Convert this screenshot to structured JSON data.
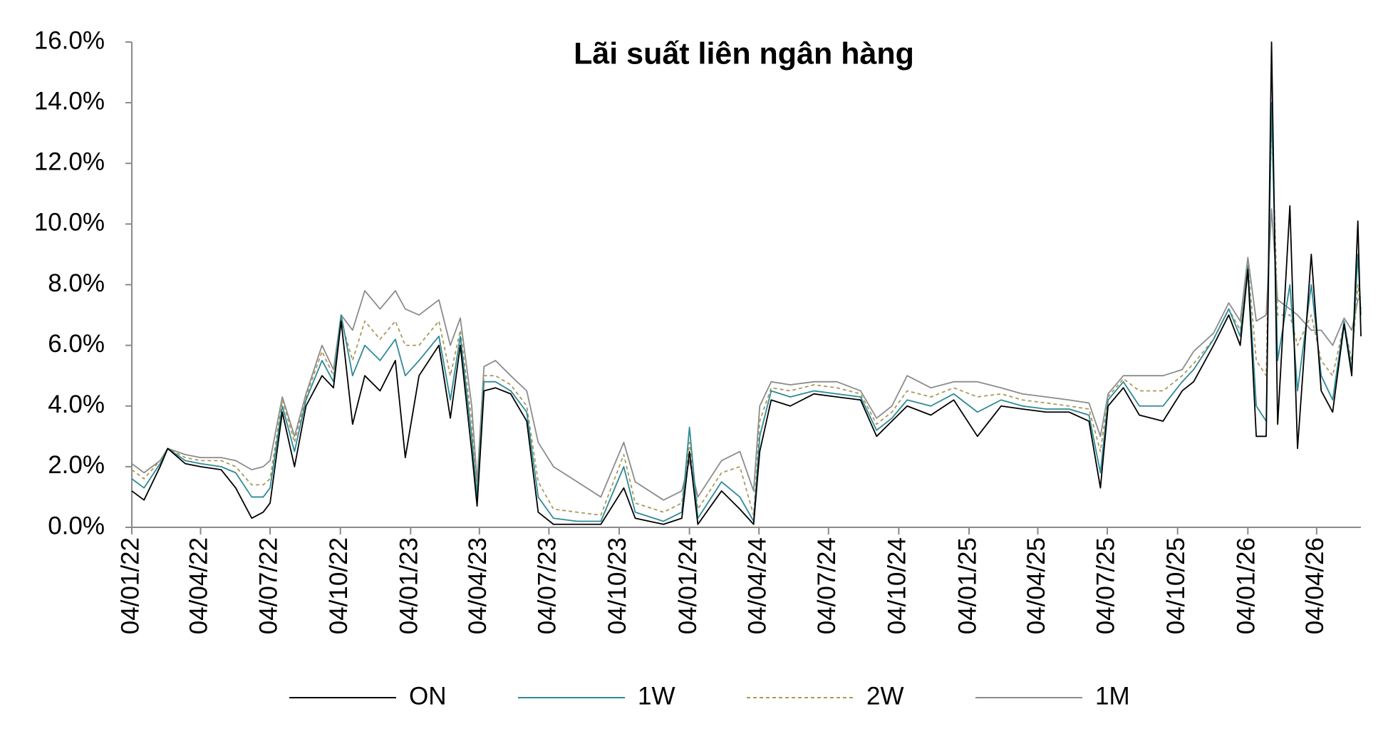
{
  "chart_data": {
    "type": "line",
    "title": "Lãi suất liên ngân hàng",
    "x": [
      "2022-01-04",
      "2022-01-20",
      "2022-02-10",
      "2022-02-20",
      "2022-03-15",
      "2022-04-04",
      "2022-05-01",
      "2022-05-20",
      "2022-06-10",
      "2022-06-25",
      "2022-07-04",
      "2022-07-20",
      "2022-08-05",
      "2022-08-20",
      "2022-09-10",
      "2022-09-25",
      "2022-10-05",
      "2022-10-20",
      "2022-11-05",
      "2022-11-25",
      "2022-12-15",
      "2022-12-28",
      "2023-01-15",
      "2023-02-10",
      "2023-02-25",
      "2023-03-10",
      "2023-03-25",
      "2023-04-01",
      "2023-04-10",
      "2023-04-25",
      "2023-05-15",
      "2023-06-05",
      "2023-06-20",
      "2023-07-10",
      "2023-08-10",
      "2023-09-10",
      "2023-10-10",
      "2023-10-25",
      "2023-12-01",
      "2023-12-25",
      "2024-01-04",
      "2024-01-15",
      "2024-02-15",
      "2024-03-10",
      "2024-03-28",
      "2024-04-05",
      "2024-04-20",
      "2024-05-15",
      "2024-06-15",
      "2024-07-15",
      "2024-08-15",
      "2024-09-05",
      "2024-09-25",
      "2024-10-15",
      "2024-11-15",
      "2024-12-15",
      "2025-01-15",
      "2025-02-15",
      "2025-03-15",
      "2025-04-15",
      "2025-05-15",
      "2025-06-10",
      "2025-06-25",
      "2025-07-05",
      "2025-07-25",
      "2025-08-15",
      "2025-09-15",
      "2025-10-10",
      "2025-10-25",
      "2025-11-20",
      "2025-12-10",
      "2025-12-25",
      "2026-01-04",
      "2026-01-15",
      "2026-01-28",
      "2026-02-04",
      "2026-02-12",
      "2026-02-28",
      "2026-03-10",
      "2026-03-28",
      "2026-04-10",
      "2026-04-25",
      "2026-05-10",
      "2026-05-20",
      "2026-05-28",
      "2026-06-01"
    ],
    "series": [
      {
        "name": "ON",
        "color": "#000000",
        "style": "solid",
        "values": [
          1.2,
          0.9,
          2.0,
          2.6,
          2.1,
          2.0,
          1.9,
          1.3,
          0.3,
          0.5,
          0.8,
          3.8,
          2.0,
          4.0,
          5.0,
          4.6,
          6.8,
          3.4,
          5.0,
          4.5,
          5.5,
          2.3,
          5.0,
          6.0,
          3.6,
          6.0,
          2.5,
          0.7,
          4.5,
          4.6,
          4.4,
          3.5,
          0.5,
          0.1,
          0.1,
          0.1,
          1.3,
          0.3,
          0.1,
          0.3,
          2.5,
          0.1,
          1.2,
          0.6,
          0.1,
          2.5,
          4.2,
          4.0,
          4.4,
          4.3,
          4.2,
          3.0,
          3.5,
          4.0,
          3.7,
          4.2,
          3.0,
          4.0,
          3.9,
          3.8,
          3.8,
          3.5,
          1.3,
          4.0,
          4.6,
          3.7,
          3.5,
          4.5,
          4.8,
          6.0,
          7.0,
          6.0,
          8.5,
          3.0,
          3.0,
          16.0,
          3.4,
          10.6,
          2.6,
          9.0,
          4.5,
          3.8,
          6.7,
          5.0,
          10.1,
          6.3
        ]
      },
      {
        "name": "1W",
        "color": "#2f8a96",
        "style": "solid",
        "values": [
          1.6,
          1.3,
          2.1,
          2.6,
          2.2,
          2.1,
          2.0,
          1.8,
          1.0,
          1.0,
          1.3,
          4.0,
          2.5,
          4.2,
          5.5,
          4.8,
          7.0,
          5.0,
          6.0,
          5.5,
          6.2,
          5.0,
          5.5,
          6.3,
          4.2,
          6.3,
          3.0,
          1.0,
          4.8,
          4.8,
          4.5,
          3.8,
          1.0,
          0.3,
          0.2,
          0.2,
          2.0,
          0.5,
          0.2,
          0.5,
          3.3,
          0.3,
          1.5,
          1.0,
          0.2,
          3.0,
          4.5,
          4.3,
          4.5,
          4.4,
          4.3,
          3.2,
          3.6,
          4.2,
          4.0,
          4.4,
          3.8,
          4.2,
          4.0,
          3.9,
          3.9,
          3.7,
          1.8,
          4.2,
          4.8,
          4.0,
          4.0,
          4.8,
          5.2,
          6.2,
          7.2,
          6.3,
          8.6,
          4.0,
          3.5,
          14.0,
          5.5,
          8.0,
          4.5,
          8.0,
          5.0,
          4.2,
          6.8,
          5.2,
          9.0,
          7.0
        ]
      },
      {
        "name": "2W",
        "color": "#a99a5c",
        "style": "dashed",
        "values": [
          1.9,
          1.6,
          2.2,
          2.6,
          2.3,
          2.2,
          2.2,
          2.0,
          1.4,
          1.4,
          1.6,
          4.2,
          2.8,
          4.3,
          5.8,
          5.0,
          6.8,
          5.5,
          6.8,
          6.2,
          6.8,
          6.0,
          6.0,
          6.8,
          5.0,
          6.5,
          3.5,
          1.2,
          5.0,
          5.0,
          4.7,
          4.0,
          1.5,
          0.6,
          0.5,
          0.4,
          2.4,
          0.8,
          0.5,
          0.8,
          2.8,
          0.6,
          1.8,
          2.0,
          0.4,
          3.5,
          4.6,
          4.5,
          4.7,
          4.6,
          4.4,
          3.4,
          3.8,
          4.5,
          4.3,
          4.6,
          4.3,
          4.4,
          4.2,
          4.1,
          4.0,
          3.9,
          2.5,
          4.3,
          4.9,
          4.5,
          4.5,
          5.0,
          5.4,
          6.2,
          7.2,
          6.5,
          8.7,
          5.5,
          5.0,
          13.5,
          7.0,
          7.0,
          6.0,
          7.0,
          5.5,
          5.0,
          6.7,
          5.5,
          8.0,
          7.2
        ]
      },
      {
        "name": "1M",
        "color": "#8c8c8c",
        "style": "solid",
        "values": [
          2.1,
          1.8,
          2.2,
          2.6,
          2.4,
          2.3,
          2.3,
          2.2,
          1.9,
          2.0,
          2.2,
          4.3,
          3.0,
          4.4,
          6.0,
          5.2,
          7.0,
          6.5,
          7.8,
          7.2,
          7.8,
          7.2,
          7.0,
          7.5,
          6.0,
          6.9,
          4.0,
          1.5,
          5.3,
          5.5,
          5.0,
          4.5,
          2.8,
          2.0,
          1.5,
          1.0,
          2.8,
          1.5,
          0.9,
          1.2,
          2.2,
          1.0,
          2.2,
          2.5,
          1.2,
          4.0,
          4.8,
          4.7,
          4.8,
          4.8,
          4.5,
          3.6,
          4.0,
          5.0,
          4.6,
          4.8,
          4.8,
          4.6,
          4.4,
          4.3,
          4.2,
          4.1,
          3.0,
          4.4,
          5.0,
          5.0,
          5.0,
          5.2,
          5.8,
          6.4,
          7.4,
          6.8,
          8.9,
          6.8,
          7.0,
          10.5,
          7.5,
          7.2,
          7.0,
          6.5,
          6.5,
          6.0,
          6.9,
          6.5,
          7.5,
          7.6
        ]
      }
    ],
    "xlim": [
      "2022-01-04",
      "2026-06-01"
    ],
    "xticks": [
      {
        "value": "2022-01-04",
        "label": "04/01/22"
      },
      {
        "value": "2022-04-04",
        "label": "04/04/22"
      },
      {
        "value": "2022-07-04",
        "label": "04/07/22"
      },
      {
        "value": "2022-10-04",
        "label": "04/10/22"
      },
      {
        "value": "2023-01-04",
        "label": "04/01/23"
      },
      {
        "value": "2023-04-04",
        "label": "04/04/23"
      },
      {
        "value": "2023-07-04",
        "label": "04/07/23"
      },
      {
        "value": "2023-10-04",
        "label": "04/10/23"
      },
      {
        "value": "2024-01-04",
        "label": "04/01/24"
      },
      {
        "value": "2024-04-04",
        "label": "04/04/24"
      },
      {
        "value": "2024-07-04",
        "label": "04/07/24"
      },
      {
        "value": "2024-10-04",
        "label": "04/10/24"
      },
      {
        "value": "2025-01-04",
        "label": "04/01/25"
      },
      {
        "value": "2025-04-04",
        "label": "04/04/25"
      },
      {
        "value": "2025-07-04",
        "label": "04/07/25"
      },
      {
        "value": "2025-10-04",
        "label": "04/10/25"
      },
      {
        "value": "2026-01-04",
        "label": "04/01/26"
      },
      {
        "value": "2026-04-04",
        "label": "04/04/26"
      }
    ],
    "ylim": [
      0,
      16
    ],
    "yticks": [
      {
        "value": 0,
        "label": "0.0%"
      },
      {
        "value": 2,
        "label": "2.0%"
      },
      {
        "value": 4,
        "label": "4.0%"
      },
      {
        "value": 6,
        "label": "6.0%"
      },
      {
        "value": 8,
        "label": "8.0%"
      },
      {
        "value": 10,
        "label": "10.0%"
      },
      {
        "value": 12,
        "label": "12.0%"
      },
      {
        "value": 14,
        "label": "14.0%"
      },
      {
        "value": 16,
        "label": "16.0%"
      }
    ],
    "grid": false,
    "legend": "bottom"
  }
}
